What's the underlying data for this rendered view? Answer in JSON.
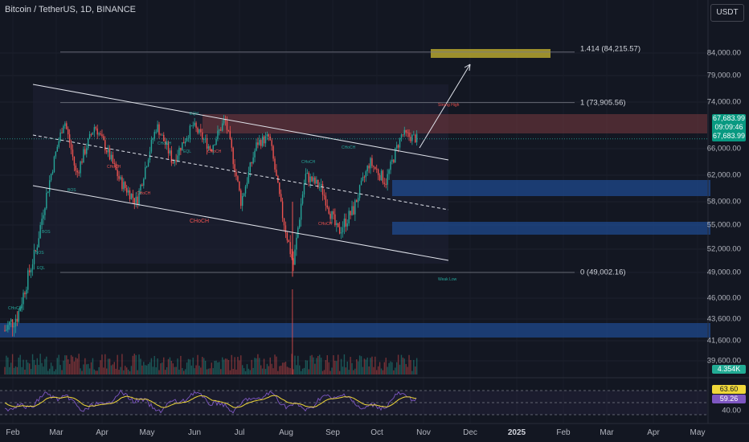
{
  "header": {
    "title": "Bitcoin / TetherUS, 1D, BINANCE",
    "currency": "USDT"
  },
  "price_axis": [
    "84,000.00",
    "79,000.00",
    "74,000.00",
    "66,000.00",
    "62,000.00",
    "58,000.00",
    "55,000.00",
    "52,000.00",
    "49,000.00",
    "46,000.00",
    "43,600.00",
    "41,600.00",
    "39,600.00"
  ],
  "rsi_axis": [
    "40.00"
  ],
  "time_axis": [
    "Feb",
    "Mar",
    "Apr",
    "May",
    "Jun",
    "Jul",
    "Aug",
    "Sep",
    "Oct",
    "Nov",
    "Dec",
    "2025",
    "Feb",
    "Mar",
    "Apr",
    "May"
  ],
  "fib_levels": [
    {
      "label": "1.414 (84,215.57)",
      "price": 84215.57
    },
    {
      "label": "1 (73,905.56)",
      "price": 73905.56
    },
    {
      "label": "0 (49,002.16)",
      "price": 49002.16
    }
  ],
  "price_tags": {
    "last_price": "67,683.99",
    "countdown": "09:09:46",
    "close_price": "67,683.99",
    "volume": "4.354K",
    "rsi_ma": "63.60",
    "rsi": "59.26"
  },
  "annotations": [
    "Strong High",
    "Weak Low",
    "CHoCH",
    "CHoCH",
    "CHoCH",
    "BOS",
    "BOS",
    "BOS",
    "EQL",
    "EQL",
    "EQH",
    "CHoCH",
    "CHoCH",
    "CHoCH",
    "CHoCH",
    "CHoCH",
    "CHoCH"
  ],
  "colors": {
    "up": "#26a69a",
    "down": "#ef5350",
    "supply_zone": "#7a3a3f",
    "demand_zone": "#1f4a8e",
    "target_zone": "#bfae2f",
    "rsi_line": "#7e57c2",
    "rsi_ma": "#f0d83a",
    "background": "#131722"
  },
  "last_price_value": 67683.99
}
